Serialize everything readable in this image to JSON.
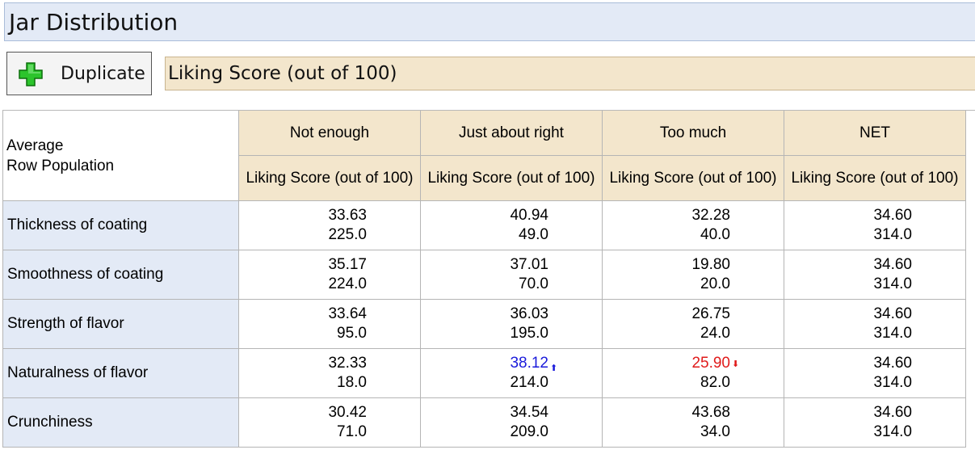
{
  "window": {
    "title": "Jar Distribution"
  },
  "toolbar": {
    "duplicate_label": "Duplicate",
    "duplicate_icon": "plus-icon"
  },
  "question": {
    "label": "Liking Score (out of 100)"
  },
  "table": {
    "corner": {
      "line1": "Average",
      "line2": "Row Population"
    },
    "columns": [
      {
        "label": "Not enough",
        "sub": "Liking Score (out of 100)"
      },
      {
        "label": "Just about right",
        "sub": "Liking Score (out of 100)"
      },
      {
        "label": "Too much",
        "sub": "Liking Score (out of 100)"
      },
      {
        "label": "NET",
        "sub": "Liking Score (out of 100)"
      }
    ],
    "rows": [
      {
        "label": "Thickness of coating",
        "cells": [
          {
            "avg": "33.63",
            "pop": "225.0"
          },
          {
            "avg": "40.94",
            "pop": "49.0"
          },
          {
            "avg": "32.28",
            "pop": "40.0"
          },
          {
            "avg": "34.60",
            "pop": "314.0"
          }
        ]
      },
      {
        "label": "Smoothness of coating",
        "cells": [
          {
            "avg": "35.17",
            "pop": "224.0"
          },
          {
            "avg": "37.01",
            "pop": "70.0"
          },
          {
            "avg": "19.80",
            "pop": "20.0"
          },
          {
            "avg": "34.60",
            "pop": "314.0"
          }
        ]
      },
      {
        "label": "Strength of flavor",
        "cells": [
          {
            "avg": "33.64",
            "pop": "95.0"
          },
          {
            "avg": "36.03",
            "pop": "195.0"
          },
          {
            "avg": "26.75",
            "pop": "24.0"
          },
          {
            "avg": "34.60",
            "pop": "314.0"
          }
        ]
      },
      {
        "label": "Naturalness of flavor",
        "cells": [
          {
            "avg": "32.33",
            "pop": "18.0"
          },
          {
            "avg": "38.12",
            "pop": "214.0",
            "sig": "up",
            "color": "#1a1adb"
          },
          {
            "avg": "25.90",
            "pop": "82.0",
            "sig": "down",
            "color": "#e01b1b"
          },
          {
            "avg": "34.60",
            "pop": "314.0"
          }
        ]
      },
      {
        "label": "Crunchiness",
        "cells": [
          {
            "avg": "30.42",
            "pop": "71.0"
          },
          {
            "avg": "34.54",
            "pop": "209.0"
          },
          {
            "avg": "43.68",
            "pop": "34.0"
          },
          {
            "avg": "34.60",
            "pop": "314.0"
          }
        ]
      }
    ]
  },
  "colors": {
    "title_bg": "#e3eaf6",
    "header_bg": "#f3e6cc",
    "row_header_bg": "#e3eaf6",
    "sig_up": "#1a1adb",
    "sig_down": "#e01b1b",
    "plus_icon": "#22b422"
  }
}
